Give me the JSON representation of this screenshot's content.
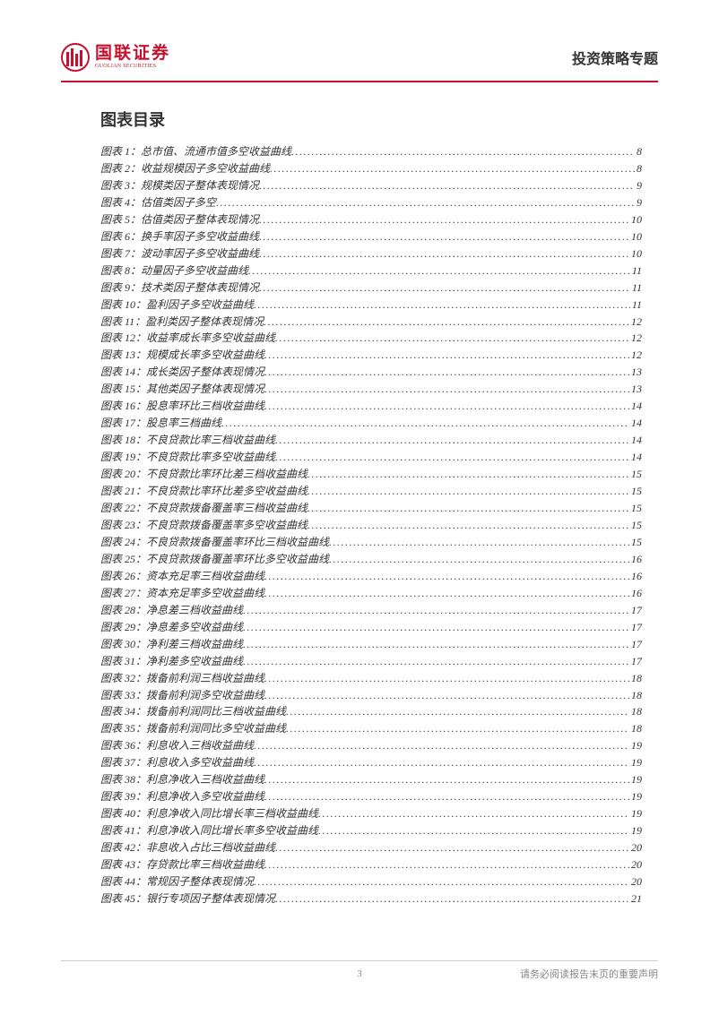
{
  "header": {
    "logo_cn": "国联证券",
    "logo_en": "GUOLIAN SECURITIES",
    "logo_color": "#c8102e",
    "title": "投资策略专题"
  },
  "toc": {
    "heading": "图表目录",
    "items": [
      {
        "label": "图表 1：总市值、流通市值多空收益曲线",
        "page": "8"
      },
      {
        "label": "图表 2：收益规模因子多空收益曲线",
        "page": "8"
      },
      {
        "label": "图表 3：规模类因子整体表现情况",
        "page": "9"
      },
      {
        "label": "图表 4：估值类因子多空",
        "page": "9"
      },
      {
        "label": "图表 5：估值类因子整体表现情况",
        "page": "10"
      },
      {
        "label": "图表 6：换手率因子多空收益曲线",
        "page": "10"
      },
      {
        "label": "图表 7：波动率因子多空收益曲线",
        "page": "10"
      },
      {
        "label": "图表 8：动量因子多空收益曲线",
        "page": "11"
      },
      {
        "label": "图表 9：技术类因子整体表现情况",
        "page": "11"
      },
      {
        "label": "图表 10：盈利因子多空收益曲线",
        "page": "11"
      },
      {
        "label": "图表 11：盈利类因子整体表现情况",
        "page": "12"
      },
      {
        "label": "图表 12：收益率成长率多空收益曲线",
        "page": "12"
      },
      {
        "label": "图表 13：规模成长率多空收益曲线",
        "page": "12"
      },
      {
        "label": "图表 14：成长类因子整体表现情况",
        "page": "13"
      },
      {
        "label": "图表 15：其他类因子整体表现情况",
        "page": "13"
      },
      {
        "label": "图表 16：股息率环比三档收益曲线",
        "page": "14"
      },
      {
        "label": "图表 17：股息率三档曲线",
        "page": "14"
      },
      {
        "label": "图表 18：不良贷款比率三档收益曲线",
        "page": "14"
      },
      {
        "label": "图表 19：不良贷款比率多空收益曲线",
        "page": "14"
      },
      {
        "label": "图表 20：不良贷款比率环比差三档收益曲线",
        "page": "15"
      },
      {
        "label": "图表 21：不良贷款比率环比差多空收益曲线",
        "page": "15"
      },
      {
        "label": "图表 22：不良贷款拨备覆盖率三档收益曲线",
        "page": "15"
      },
      {
        "label": "图表 23：不良贷款拨备覆盖率多空收益曲线",
        "page": "15"
      },
      {
        "label": "图表 24：不良贷款拨备覆盖率环比三档收益曲线",
        "page": "15"
      },
      {
        "label": "图表 25：不良贷款拨备覆盖率环比多空收益曲线",
        "page": "16"
      },
      {
        "label": "图表 26：资本充足率三档收益曲线",
        "page": "16"
      },
      {
        "label": "图表 27：资本充足率多空收益曲线",
        "page": "16"
      },
      {
        "label": "图表 28：净息差三档收益曲线",
        "page": "17"
      },
      {
        "label": "图表 29：净息差多空收益曲线",
        "page": "17"
      },
      {
        "label": "图表 30：净利差三档收益曲线",
        "page": "17"
      },
      {
        "label": "图表 31：净利差多空收益曲线",
        "page": "17"
      },
      {
        "label": "图表 32：拨备前利润三档收益曲线",
        "page": "18"
      },
      {
        "label": "图表 33：拨备前利润多空收益曲线",
        "page": "18"
      },
      {
        "label": "图表 34：拨备前利润同比三档收益曲线",
        "page": "18"
      },
      {
        "label": "图表 35：拨备前利润同比多空收益曲线",
        "page": "18"
      },
      {
        "label": "图表 36：利息收入三档收益曲线",
        "page": "19"
      },
      {
        "label": "图表 37：利息收入多空收益曲线",
        "page": "19"
      },
      {
        "label": "图表 38：利息净收入三档收益曲线",
        "page": "19"
      },
      {
        "label": "图表 39：利息净收入多空收益曲线",
        "page": "19"
      },
      {
        "label": "图表 40：利息净收入同比增长率三档收益曲线",
        "page": "19"
      },
      {
        "label": "图表 41：利息净收入同比增长率多空收益曲线",
        "page": "19"
      },
      {
        "label": "图表 42：非息收入占比三档收益曲线",
        "page": "20"
      },
      {
        "label": "图表 43：存贷款比率三档收益曲线",
        "page": "20"
      },
      {
        "label": "图表 44：常规因子整体表现情况",
        "page": "20"
      },
      {
        "label": "图表 45：银行专项因子整体表现情况",
        "page": "21"
      }
    ]
  },
  "footer": {
    "page_num": "3",
    "note": "请务必阅读报告末页的重要声明"
  },
  "colors": {
    "brand": "#c8102e",
    "text": "#333333",
    "footer_text": "#888888",
    "bg": "#ffffff",
    "divider": "#cccccc"
  }
}
